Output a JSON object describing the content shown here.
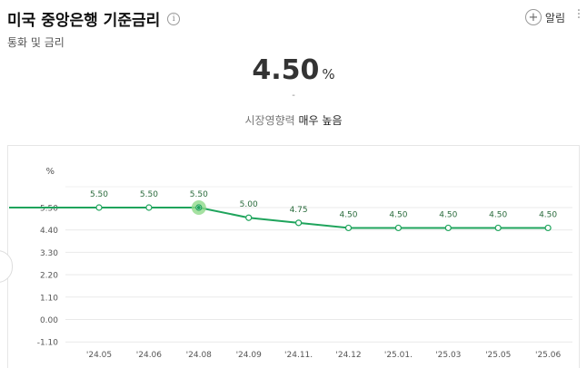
{
  "header": {
    "title": "미국 중앙은행 기준금리",
    "info_icon": "info-icon",
    "subtitle": "통화 및 금리",
    "alert_label": "알림",
    "alert_icon": "plus-icon",
    "more_icon": "more-vertical-icon"
  },
  "summary": {
    "value": "4.50",
    "unit": "%",
    "change": "-",
    "impact_label": "시장영향력",
    "impact_level": "매우 높음"
  },
  "colors": {
    "line": "#1fa45c",
    "highlight": "#8fd98a"
  },
  "chart_data": {
    "type": "line",
    "ylabel": "%",
    "ylim": [
      -1.1,
      6.6
    ],
    "yticks": [
      "5.50",
      "4.40",
      "3.30",
      "2.20",
      "1.10",
      "0.00",
      "-1.10"
    ],
    "ytick_values": [
      5.5,
      4.4,
      3.3,
      2.2,
      1.1,
      0.0,
      -1.1
    ],
    "categories": [
      "'24.05",
      "'24.06",
      "'24.08",
      "'24.09",
      "'24.11.",
      "'24.12",
      "'25.01.",
      "'25.03",
      "'25.05",
      "'25.06"
    ],
    "values": [
      5.5,
      5.5,
      5.5,
      5.0,
      4.75,
      4.5,
      4.5,
      4.5,
      4.5,
      4.5
    ],
    "labels": [
      "5.50",
      "5.50",
      "5.50",
      "5.00",
      "4.75",
      "4.50",
      "4.50",
      "4.50",
      "4.50",
      "4.50"
    ],
    "highlight_index": 2,
    "grid": true,
    "legend": "none"
  }
}
